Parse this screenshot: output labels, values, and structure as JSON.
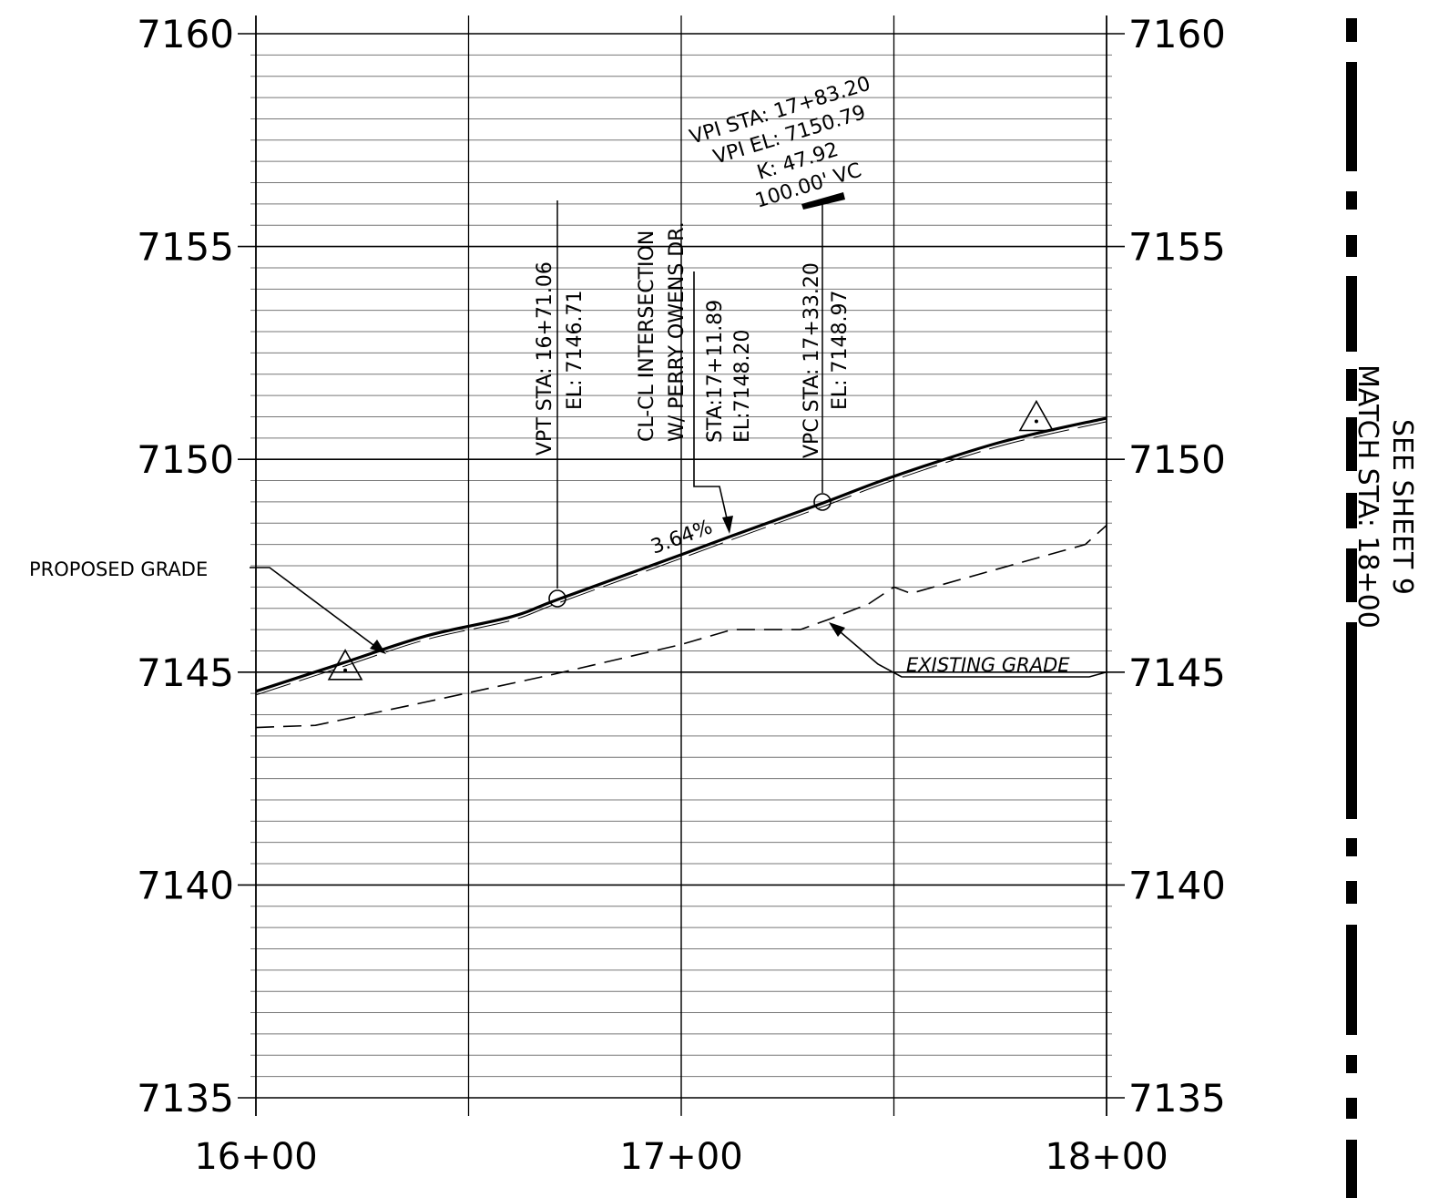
{
  "profile": {
    "elevation_axis": {
      "min": 7135,
      "max": 7160,
      "major_step": 5,
      "minor_step": 0.5
    },
    "station_axis": {
      "min": 1600,
      "max": 1800,
      "major_step": 50
    },
    "y_tick_labels": [
      "7160",
      "7155",
      "7150",
      "7145",
      "7140",
      "7135"
    ],
    "x_tick_labels": [
      "16+00",
      "17+00",
      "18+00"
    ],
    "proposed_grade": {
      "label": "PROPOSED GRADE",
      "points": [
        [
          1600,
          7144.55
        ],
        [
          1620,
          7145.2
        ],
        [
          1640,
          7145.85
        ],
        [
          1660,
          7146.3
        ],
        [
          1671.06,
          7146.71
        ],
        [
          1700,
          7147.76
        ],
        [
          1711.89,
          7148.2
        ],
        [
          1733.2,
          7148.97
        ],
        [
          1750,
          7149.6
        ],
        [
          1775,
          7150.4
        ],
        [
          1800,
          7150.97
        ]
      ]
    },
    "existing_grade": {
      "label": "EXISTING GRADE",
      "points": [
        [
          1600,
          7143.7
        ],
        [
          1614,
          7143.75
        ],
        [
          1640,
          7144.3
        ],
        [
          1670,
          7144.95
        ],
        [
          1700,
          7145.65
        ],
        [
          1712,
          7146.0
        ],
        [
          1728,
          7146.0
        ],
        [
          1735,
          7146.25
        ],
        [
          1744,
          7146.6
        ],
        [
          1750,
          7147.0
        ],
        [
          1754,
          7146.85
        ],
        [
          1770,
          7147.3
        ],
        [
          1795,
          7148.0
        ],
        [
          1800,
          7148.45
        ]
      ]
    },
    "grade_percent": "3.64%",
    "vpt": {
      "sta_text": "VPT STA: 16+71.06",
      "el_text": "EL: 7146.71",
      "station": 1671.06,
      "elevation": 7146.71
    },
    "intersection": {
      "line1": "CL-CL INTERSECTION",
      "line2": "W/ PERRY OWENS DR.",
      "sta_text": "STA:17+11.89",
      "el_text": "EL:7148.20",
      "station": 1711.89,
      "elevation": 7148.2
    },
    "vpc": {
      "sta_text": "VPC STA: 17+33.20",
      "el_text": "EL: 7148.97",
      "station": 1733.2,
      "elevation": 7148.97
    },
    "vpi": {
      "sta_text": "VPI STA: 17+83.20",
      "el_text": "VPI EL: 7150.79",
      "k_text": "K: 47.92",
      "vc_text": "100.00' VC"
    },
    "benchmarks": [
      {
        "station": 1621,
        "elevation": 7145.0
      },
      {
        "station": 1783.5,
        "elevation": 7150.85
      }
    ]
  },
  "match_line": {
    "line1": "SEE SHEET 9",
    "line2": "MATCH STA: 18+00"
  }
}
